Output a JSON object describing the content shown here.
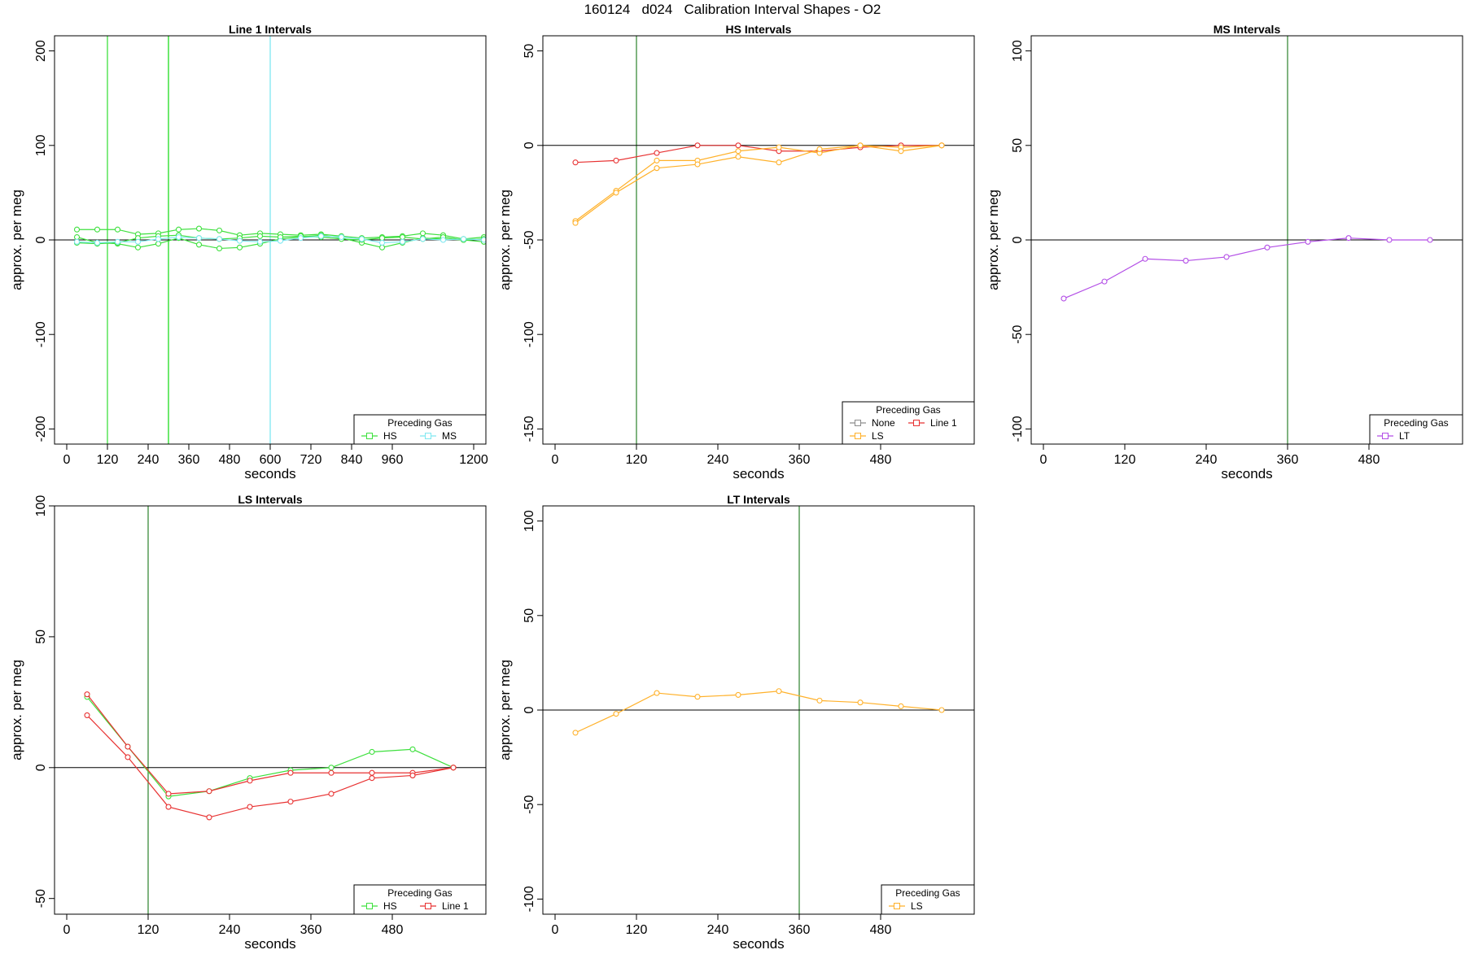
{
  "title": "160124   d024   Calibration Interval Shapes - O2",
  "colors": {
    "HS": "#3ee03e",
    "MS": "#7fe8f0",
    "LS": "#ffb12a",
    "LT": "#b34ee6",
    "Line 1": "#e83232",
    "None": "#8c8c8c",
    "vline_dark": "#3c8c3c"
  },
  "chart_data": [
    {
      "type": "line",
      "title": "Line 1 Intervals",
      "xlabel": "seconds",
      "ylabel": "approx. per meg",
      "xlim": [
        -36,
        1236
      ],
      "ylim": [
        -216,
        216
      ],
      "xticks": [
        0,
        120,
        240,
        360,
        480,
        600,
        720,
        840,
        960,
        1200
      ],
      "yticks": [
        -200,
        -100,
        0,
        100,
        200
      ],
      "hline": 0,
      "vlines": [
        {
          "x": 120,
          "color": "HS"
        },
        {
          "x": 300,
          "color": "HS"
        },
        {
          "x": 300,
          "color": "HS"
        },
        {
          "x": 600,
          "color": "MS"
        }
      ],
      "legend": {
        "title": "Preceding Gas",
        "position": "bottom-right",
        "entries": [
          "HS",
          "MS"
        ]
      },
      "series": [
        {
          "name": "HS",
          "color": "HS",
          "x": [
            30,
            90,
            150,
            210,
            270,
            330,
            390,
            450,
            510,
            570,
            630,
            690,
            750,
            810,
            870,
            930,
            990,
            1050,
            1110,
            1170,
            1230
          ],
          "y": [
            11,
            11,
            11,
            6,
            7,
            11,
            12,
            10,
            5,
            7,
            6,
            5,
            6,
            4,
            2,
            3,
            4,
            7,
            5,
            1,
            3
          ]
        },
        {
          "name": "HS",
          "color": "HS",
          "x": [
            30,
            90,
            150,
            210,
            270,
            330,
            390,
            450,
            510,
            570,
            630,
            690,
            750,
            810,
            870,
            930,
            990,
            1050,
            1110,
            1170,
            1230
          ],
          "y": [
            3,
            -3,
            -4,
            -8,
            -4,
            2,
            -5,
            -9,
            -8,
            -4,
            1,
            3,
            5,
            2,
            -3,
            -8,
            -3,
            2,
            1,
            0,
            -2
          ]
        },
        {
          "name": "HS",
          "color": "HS",
          "x": [
            30,
            90,
            150,
            210,
            270,
            330,
            390,
            450,
            510,
            570,
            630,
            690,
            750,
            810,
            870,
            930,
            990,
            1050,
            1110,
            1170,
            1230
          ],
          "y": [
            -3,
            -4,
            -3,
            2,
            4,
            5,
            2,
            1,
            2,
            4,
            3,
            4,
            3,
            1,
            0,
            2,
            3,
            1,
            3,
            0,
            1
          ]
        },
        {
          "name": "MS",
          "color": "MS",
          "x": [
            30,
            90,
            150,
            210,
            270,
            330,
            390,
            450,
            510,
            570,
            630,
            690,
            750,
            810,
            870,
            930,
            990,
            1050,
            1110,
            1170,
            1230
          ],
          "y": [
            -2,
            -3,
            -2,
            -2,
            1,
            3,
            2,
            1,
            -1,
            -2,
            -1,
            2,
            4,
            3,
            1,
            -3,
            -2,
            1,
            0,
            1,
            0
          ]
        }
      ]
    },
    {
      "type": "line",
      "title": "HS Intervals",
      "xlabel": "seconds",
      "ylabel": "approx. per meg",
      "xlim": [
        -18,
        618
      ],
      "ylim": [
        -158,
        58
      ],
      "xticks": [
        0,
        120,
        240,
        360,
        480
      ],
      "yticks": [
        -150,
        -100,
        -50,
        0,
        50
      ],
      "hline": 0,
      "vlines": [
        {
          "x": 120,
          "color": "vline_dark"
        }
      ],
      "legend": {
        "title": "Preceding Gas",
        "position": "bottom-right",
        "entries": [
          "None",
          "LS",
          "Line 1"
        ]
      },
      "series": [
        {
          "name": "Line 1",
          "color": "Line 1",
          "x": [
            30,
            90,
            150,
            210,
            270,
            330,
            390,
            450,
            510,
            570
          ],
          "y": [
            -9,
            -8,
            -4,
            0,
            0,
            -3,
            -3,
            -1,
            0,
            0
          ]
        },
        {
          "name": "LS",
          "color": "LS",
          "x": [
            30,
            90,
            150,
            210,
            270,
            330,
            390,
            450,
            510,
            570
          ],
          "y": [
            -40,
            -24,
            -8,
            -8,
            -3,
            -1,
            -4,
            0,
            -1,
            0
          ]
        },
        {
          "name": "LS",
          "color": "LS",
          "x": [
            30,
            90,
            150,
            210,
            270,
            330,
            390,
            450,
            510,
            570
          ],
          "y": [
            -41,
            -25,
            -12,
            -10,
            -6,
            -9,
            -2,
            0,
            -3,
            0
          ]
        }
      ]
    },
    {
      "type": "line",
      "title": "MS Intervals",
      "xlabel": "seconds",
      "ylabel": "approx. per meg",
      "xlim": [
        -18,
        618
      ],
      "ylim": [
        -108,
        108
      ],
      "xticks": [
        0,
        120,
        240,
        360,
        480
      ],
      "yticks": [
        -100,
        -50,
        0,
        50,
        100
      ],
      "hline": 0,
      "vlines": [
        {
          "x": 360,
          "color": "vline_dark"
        }
      ],
      "legend": {
        "title": "Preceding Gas",
        "position": "bottom-right",
        "entries": [
          "LT"
        ]
      },
      "series": [
        {
          "name": "LT",
          "color": "LT",
          "x": [
            30,
            90,
            150,
            210,
            270,
            330,
            390,
            450,
            510,
            570
          ],
          "y": [
            -31,
            -22,
            -10,
            -11,
            -9,
            -4,
            -1,
            1,
            0,
            0
          ]
        }
      ]
    },
    {
      "type": "line",
      "title": "LS Intervals",
      "xlabel": "seconds",
      "ylabel": "approx. per meg",
      "xlim": [
        -18,
        618
      ],
      "ylim": [
        -56,
        100
      ],
      "xticks": [
        0,
        120,
        240,
        360,
        480
      ],
      "yticks": [
        -50,
        0,
        50,
        100
      ],
      "hline": 0,
      "vlines": [
        {
          "x": 120,
          "color": "vline_dark"
        }
      ],
      "legend": {
        "title": "Preceding Gas",
        "position": "bottom-right",
        "entries": [
          "HS",
          "Line 1"
        ]
      },
      "series": [
        {
          "name": "HS",
          "color": "HS",
          "x": [
            30,
            90,
            150,
            210,
            270,
            330,
            390,
            450,
            510,
            570
          ],
          "y": [
            27,
            8,
            -11,
            -9,
            -4,
            -1,
            0,
            6,
            7,
            0
          ]
        },
        {
          "name": "Line 1",
          "color": "Line 1",
          "x": [
            30,
            90,
            150,
            210,
            270,
            330,
            390,
            450,
            510,
            570
          ],
          "y": [
            28,
            8,
            -10,
            -9,
            -5,
            -2,
            -2,
            -2,
            -2,
            0
          ]
        },
        {
          "name": "Line 1",
          "color": "Line 1",
          "x": [
            30,
            90,
            150,
            210,
            270,
            330,
            390,
            450,
            510,
            570
          ],
          "y": [
            20,
            4,
            -15,
            -19,
            -15,
            -13,
            -10,
            -4,
            -3,
            0
          ]
        }
      ]
    },
    {
      "type": "line",
      "title": "LT Intervals",
      "xlabel": "seconds",
      "ylabel": "approx. per meg",
      "xlim": [
        -18,
        618
      ],
      "ylim": [
        -108,
        108
      ],
      "xticks": [
        0,
        120,
        240,
        360,
        480
      ],
      "yticks": [
        -100,
        -50,
        0,
        50,
        100
      ],
      "hline": 0,
      "vlines": [
        {
          "x": 360,
          "color": "vline_dark"
        }
      ],
      "legend": {
        "title": "Preceding Gas",
        "position": "bottom-right",
        "entries": [
          "LS"
        ]
      },
      "series": [
        {
          "name": "LS",
          "color": "LS",
          "x": [
            30,
            90,
            150,
            210,
            270,
            330,
            390,
            450,
            510,
            570
          ],
          "y": [
            -12,
            -2,
            9,
            7,
            8,
            10,
            5,
            4,
            2,
            0
          ]
        }
      ]
    }
  ]
}
